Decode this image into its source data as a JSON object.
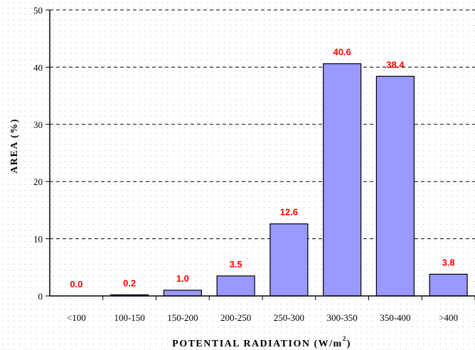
{
  "chart_data": {
    "type": "bar",
    "categories": [
      "<100",
      "100-150",
      "150-200",
      "200-250",
      "250-300",
      "300-350",
      "350-400",
      ">400"
    ],
    "values": [
      0.0,
      0.2,
      1.0,
      3.5,
      12.6,
      40.6,
      38.4,
      3.8
    ],
    "data_labels": [
      "0.0",
      "0.2",
      "1.0",
      "3.5",
      "12.6",
      "40.6",
      "38.4",
      "3.8"
    ],
    "y_ticks": [
      "0",
      "10",
      "20",
      "30",
      "40",
      "50"
    ],
    "ylim": [
      0,
      50
    ],
    "xlabel": "POTENTIAL RADIATION (W/m",
    "xlabel_superscript": "2",
    "xlabel_suffix": ")",
    "ylabel": "AREA (%)",
    "grid": "horizontal dashed",
    "colors": {
      "bar_fill": "#9999ff",
      "bar_stroke": "#000000",
      "data_label": "#ff0000",
      "background_dots": "#c8c8c8"
    }
  }
}
